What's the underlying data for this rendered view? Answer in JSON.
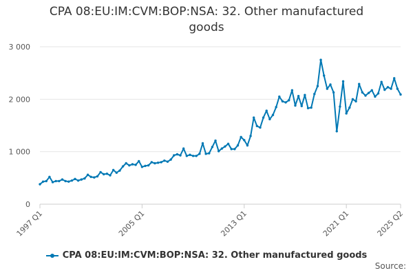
{
  "title_lines": [
    "CPA 08:EU:IM:CVM:BOP:NSA: 32. Other manufactured",
    "goods"
  ],
  "source_label": "Source:",
  "colors": {
    "series": "#0078b4",
    "grid": "#e6e6e6",
    "axis": "#cccccc"
  },
  "chart_data": {
    "type": "line",
    "title": "CPA 08:EU:IM:CVM:BOP:NSA: 32. Other manufactured goods",
    "xlabel": "",
    "ylabel": "",
    "ylim": [
      0,
      3000
    ],
    "y_ticks": [
      "0",
      "1 000",
      "2 000",
      "3 000"
    ],
    "y_tick_values": [
      0,
      1000,
      2000,
      3000
    ],
    "x_tick_labels": [
      "1997 Q1",
      "2005 Q1",
      "2013 Q1",
      "2021 Q1",
      "2025 Q2"
    ],
    "x_tick_quarters": [
      "1997 Q1",
      "2005 Q1",
      "2013 Q1",
      "2021 Q1",
      "2025 Q2"
    ],
    "grid": true,
    "legend": "bottom",
    "frequency": "quarterly",
    "x_start": "1997 Q1",
    "x_end": "2025 Q2",
    "series": [
      {
        "name": "CPA 08:EU:IM:CVM:BOP:NSA: 32. Other manufactured goods",
        "values": [
          380,
          430,
          440,
          520,
          420,
          440,
          440,
          470,
          440,
          430,
          450,
          480,
          450,
          470,
          490,
          560,
          520,
          510,
          530,
          610,
          570,
          580,
          550,
          650,
          600,
          640,
          720,
          780,
          740,
          760,
          750,
          820,
          710,
          730,
          740,
          800,
          780,
          790,
          800,
          830,
          810,
          850,
          930,
          950,
          930,
          1060,
          920,
          940,
          920,
          920,
          960,
          1160,
          960,
          970,
          1090,
          1210,
          1010,
          1060,
          1100,
          1150,
          1050,
          1050,
          1120,
          1280,
          1220,
          1120,
          1300,
          1650,
          1490,
          1460,
          1650,
          1780,
          1620,
          1700,
          1850,
          2050,
          1960,
          1940,
          1980,
          2170,
          1880,
          2060,
          1870,
          2080,
          1830,
          1840,
          2100,
          2250,
          2750,
          2450,
          2200,
          2280,
          2130,
          1390,
          1860,
          2340,
          1730,
          1840,
          2000,
          1960,
          2290,
          2130,
          2070,
          2120,
          2170,
          2050,
          2110,
          2330,
          2180,
          2230,
          2200,
          2400,
          2200,
          2090
        ]
      }
    ]
  }
}
